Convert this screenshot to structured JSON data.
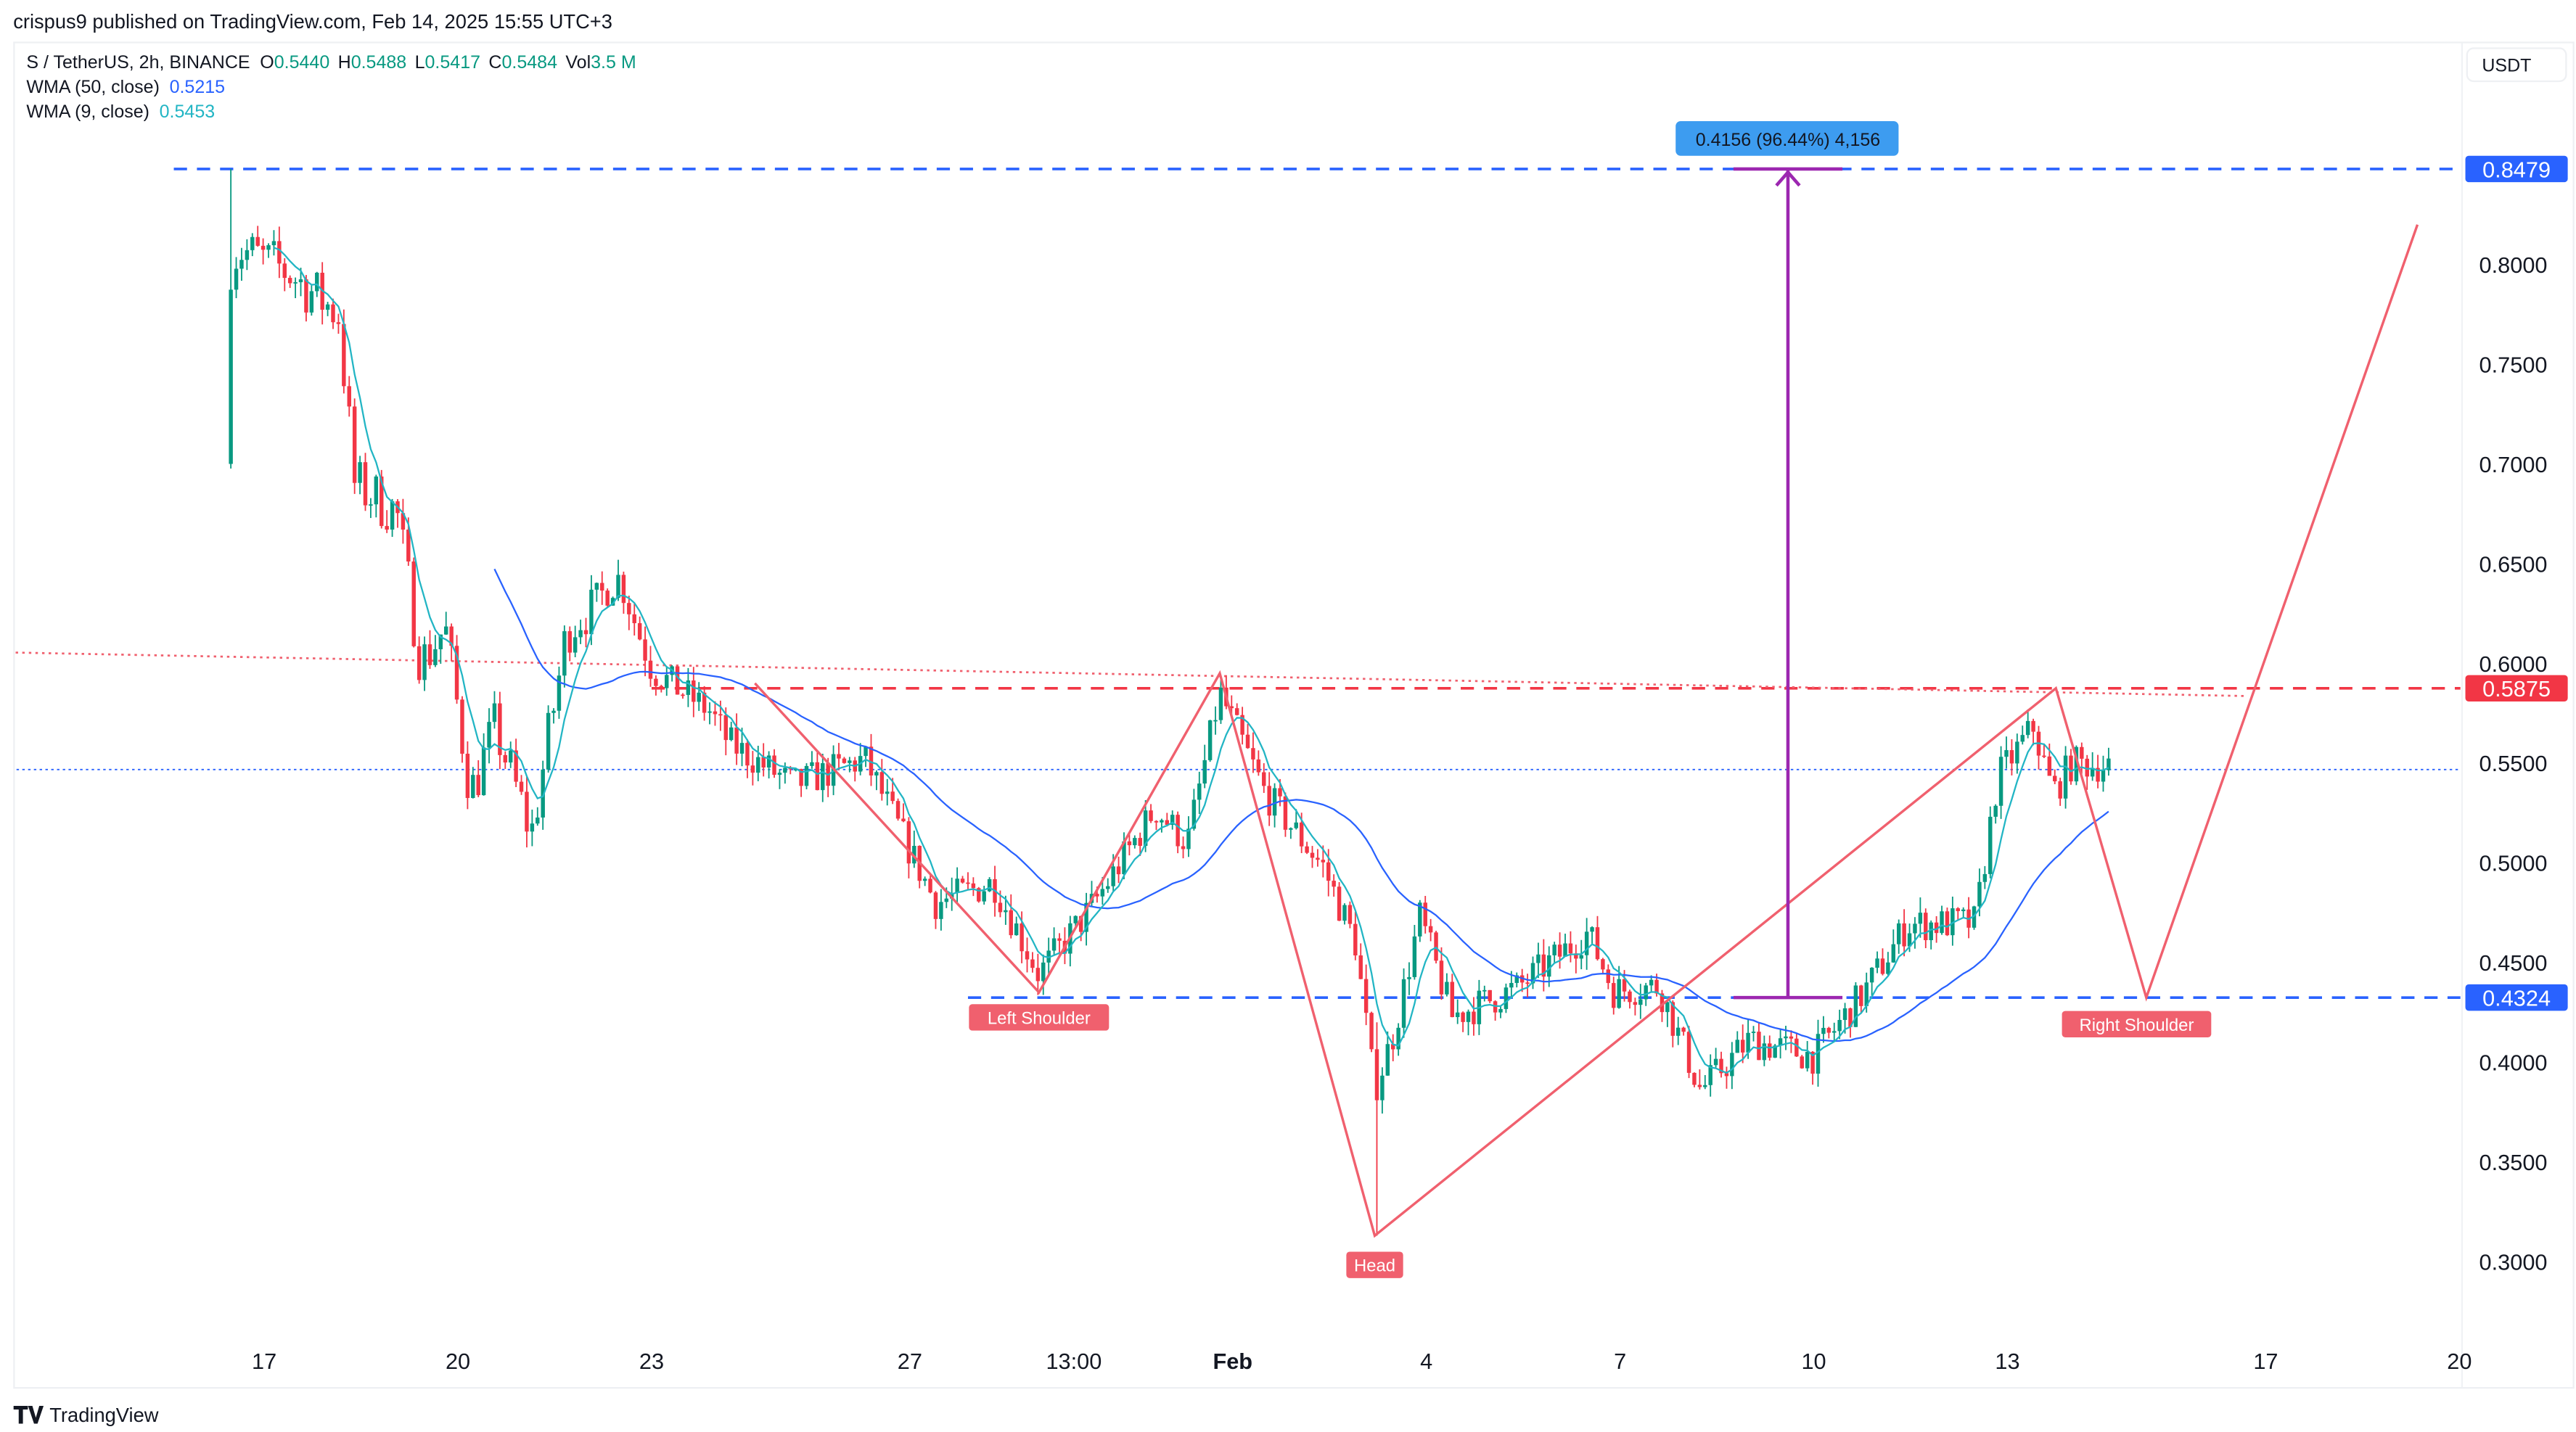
{
  "header": {
    "published": "crispus9 published on TradingView.com, Feb 14, 2025 15:55 UTC+3",
    "symbol": "S / TetherUS, 2h, BINANCE",
    "o_label": "O",
    "o": "0.5440",
    "h_label": "H",
    "h": "0.5488",
    "l_label": "L",
    "l": "0.5417",
    "c_label": "C",
    "c": "0.5484",
    "vol_label": "Vol",
    "vol": "3.5 M",
    "wma50_label": "WMA (50, close)",
    "wma50": "0.5215",
    "wma9_label": "WMA (9, close)",
    "wma9": "0.5453"
  },
  "currency_button": "USDT",
  "footer_logo": "TradingView",
  "colors": {
    "up": "#089981",
    "down": "#f23645",
    "wma50": "#2962ff",
    "wma9": "#22b5c4",
    "pattern": "#f0606e",
    "level_blue": "#2962ff",
    "level_red": "#f23645",
    "measure": "#9c27b0",
    "measure_label": "#3d9cf0"
  },
  "chart_data": {
    "type": "candlestick",
    "title": "S / TetherUS, 2h, BINANCE",
    "ylim": [
      0.28,
      0.87
    ],
    "y_ticks": [
      "0.8000",
      "0.7500",
      "0.7000",
      "0.6500",
      "0.6000",
      "0.5500",
      "0.5000",
      "0.4500",
      "0.4000",
      "0.3500",
      "0.3000"
    ],
    "y_tick_values": [
      0.8,
      0.75,
      0.7,
      0.65,
      0.6,
      0.55,
      0.5,
      0.45,
      0.4,
      0.35,
      0.3
    ],
    "x_ticks": [
      {
        "label": "17",
        "day": 0
      },
      {
        "label": "20",
        "day": 3
      },
      {
        "label": "23",
        "day": 6
      },
      {
        "label": "27",
        "day": 10
      },
      {
        "label": "13:00",
        "day": 12.54
      },
      {
        "label": "Feb",
        "day": 15
      },
      {
        "label": "4",
        "day": 18
      },
      {
        "label": "7",
        "day": 21
      },
      {
        "label": "10",
        "day": 24
      },
      {
        "label": "13",
        "day": 27
      },
      {
        "label": "17",
        "day": 31
      },
      {
        "label": "20",
        "day": 34
      }
    ],
    "x_unit": "days since Jan 17",
    "price_path": [
      [
        -0.6,
        0.7
      ],
      [
        -0.55,
        0.8
      ],
      [
        -0.4,
        0.808
      ],
      [
        0.38,
        0.796
      ],
      [
        1.15,
        0.775
      ],
      [
        1.4,
        0.69
      ],
      [
        2.05,
        0.676
      ],
      [
        2.43,
        0.6
      ],
      [
        2.8,
        0.618
      ],
      [
        3.2,
        0.535
      ],
      [
        3.58,
        0.568
      ],
      [
        4.14,
        0.514
      ],
      [
        4.7,
        0.618
      ],
      [
        5.5,
        0.643
      ],
      [
        6.0,
        0.597
      ],
      [
        6.9,
        0.576
      ],
      [
        7.2,
        0.56
      ],
      [
        8.2,
        0.539
      ],
      [
        9.3,
        0.552
      ],
      [
        10.4,
        0.48
      ],
      [
        11.3,
        0.49
      ],
      [
        12.0,
        0.444
      ],
      [
        12.8,
        0.477
      ],
      [
        13.8,
        0.527
      ],
      [
        14.3,
        0.51
      ],
      [
        14.8,
        0.585
      ],
      [
        15.5,
        0.535
      ],
      [
        16.4,
        0.498
      ],
      [
        16.9,
        0.46
      ],
      [
        17.2,
        0.386
      ],
      [
        17.5,
        0.415
      ],
      [
        17.9,
        0.473
      ],
      [
        18.4,
        0.423
      ],
      [
        19.4,
        0.437
      ],
      [
        20.5,
        0.465
      ],
      [
        20.9,
        0.436
      ],
      [
        21.6,
        0.438
      ],
      [
        22.25,
        0.386
      ],
      [
        23.0,
        0.411
      ],
      [
        24.0,
        0.403
      ],
      [
        24.8,
        0.436
      ],
      [
        25.45,
        0.469
      ],
      [
        26.5,
        0.47
      ],
      [
        26.85,
        0.543
      ],
      [
        27.4,
        0.568
      ],
      [
        27.7,
        0.535
      ],
      [
        28.0,
        0.55
      ],
      [
        28.6,
        0.5484
      ]
    ],
    "special_wicks": [
      {
        "day": -0.55,
        "low": 0.7,
        "high": 0.8479
      },
      {
        "day": 17.2,
        "low": 0.313,
        "high": 0.42
      }
    ],
    "levels": [
      {
        "price": 0.8479,
        "label": "0.8479",
        "color": "#2962ff"
      },
      {
        "price": 0.5875,
        "label": "0.5875",
        "color": "#f23645"
      },
      {
        "price": 0.4324,
        "label": "0.4324",
        "color": "#2962ff"
      }
    ],
    "current_price": 0.5484,
    "pattern_points": [
      [
        7.6,
        0.59
      ],
      [
        12.0,
        0.435
      ],
      [
        14.8,
        0.595
      ],
      [
        17.2,
        0.313
      ],
      [
        27.75,
        0.5875
      ],
      [
        29.15,
        0.4324
      ],
      [
        33.35,
        0.82
      ]
    ],
    "pattern_labels": [
      {
        "text": "Left Shoulder",
        "day": 12.0,
        "price": 0.4324
      },
      {
        "text": "Head",
        "day": 17.2,
        "price": 0.3
      },
      {
        "text": "Right Shoulder",
        "day": 29.0,
        "price": 0.429
      }
    ],
    "trendline": [
      [
        -3.85,
        0.6054
      ],
      [
        30.7,
        0.5836
      ]
    ],
    "measure": {
      "day": 23.6,
      "from": 0.4324,
      "to": 0.8479,
      "label": "0.4156 (96.44%) 4,156"
    }
  }
}
